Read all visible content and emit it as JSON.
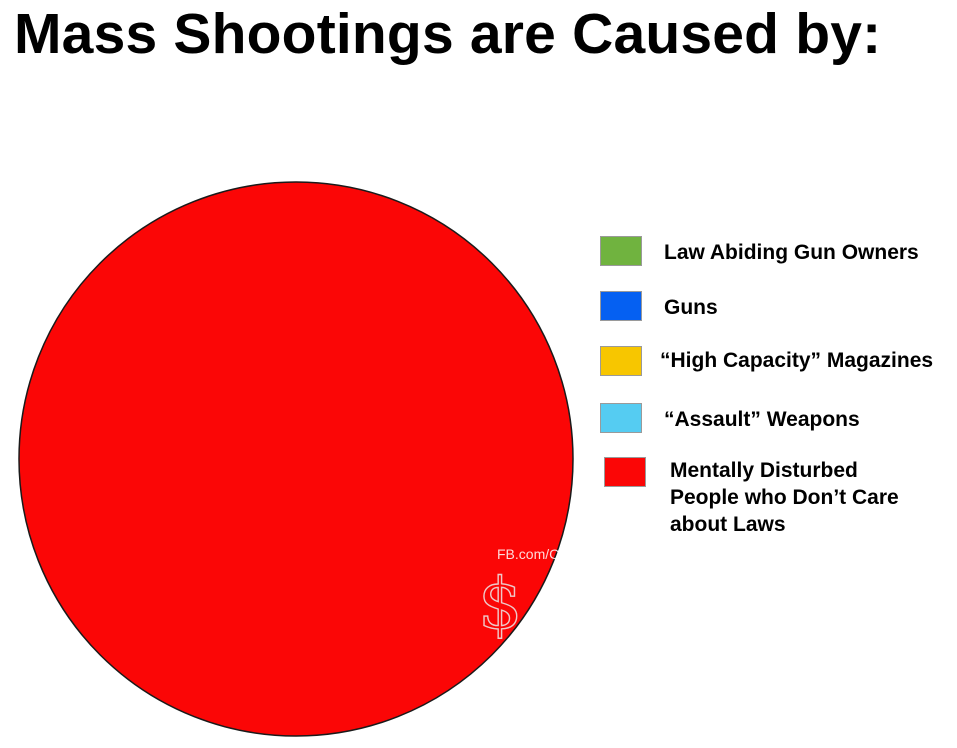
{
  "title": "Mass Shootings are Caused by:",
  "watermark": {
    "text": "FB.com/Capitalists",
    "logo": "$"
  },
  "chart_data": {
    "type": "pie",
    "title": "Mass Shootings are Caused by:",
    "legend_position": "right",
    "slices": [
      {
        "label": "Law Abiding Gun Owners",
        "value": 0,
        "color": "#70b33f"
      },
      {
        "label": "Guns",
        "value": 0,
        "color": "#0560f2"
      },
      {
        "label": "“High Capacity” Magazines",
        "value": 0,
        "color": "#f7c600"
      },
      {
        "label": "“Assault” Weapons",
        "value": 0,
        "color": "#55ccf2"
      },
      {
        "label": "Mentally Disturbed\nPeople who Don’t Care\nabout Laws",
        "value": 100,
        "color": "#fb0606"
      }
    ]
  }
}
